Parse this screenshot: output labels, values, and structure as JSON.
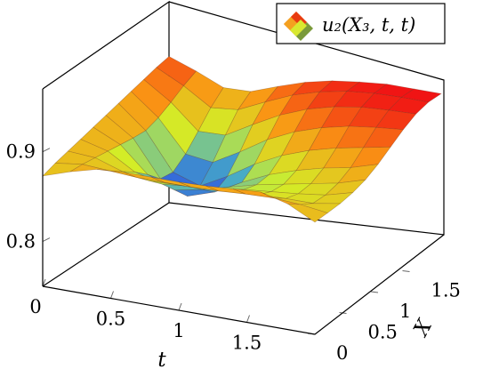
{
  "chart_data": {
    "type": "surface",
    "legend": {
      "label": "u₂(X₃, t, t)",
      "position": "top-right"
    },
    "axes": {
      "t": {
        "label": "t",
        "range": [
          0,
          2
        ],
        "ticks": [
          "0",
          "0.5",
          "1",
          "1.5"
        ],
        "tick_values": [
          0,
          0.5,
          1,
          1.5
        ]
      },
      "X": {
        "label": "X",
        "range": [
          0,
          2
        ],
        "ticks": [
          "0",
          "0.5",
          "1",
          "1.5"
        ],
        "tick_values": [
          0,
          0.5,
          1,
          1.5
        ]
      },
      "z": {
        "range": [
          0.75,
          0.97
        ],
        "ticks": [
          "0.8",
          "0.9"
        ],
        "tick_values": [
          0.8,
          0.9
        ]
      }
    },
    "grid": false,
    "box": true,
    "colormap": "blue-yellow-red (jet, upper half)",
    "color_range": [
      0.815,
      0.925
    ],
    "surface": {
      "t": [
        0,
        0.2,
        0.4,
        0.6,
        0.8,
        1.0,
        1.2,
        1.4,
        1.6,
        1.8,
        2.0
      ],
      "X": [
        0,
        0.2,
        0.4,
        0.6,
        0.8,
        1.0,
        1.2,
        1.4,
        1.6,
        1.8,
        2.0
      ],
      "z_rows_by_X": [
        [
          0.873,
          0.883,
          0.891,
          0.893,
          0.893,
          0.893,
          0.894,
          0.896,
          0.898,
          0.89,
          0.875
        ],
        [
          0.878,
          0.882,
          0.88,
          0.878,
          0.878,
          0.878,
          0.879,
          0.881,
          0.882,
          0.88,
          0.876
        ],
        [
          0.882,
          0.88,
          0.87,
          0.865,
          0.866,
          0.867,
          0.869,
          0.871,
          0.872,
          0.872,
          0.877
        ],
        [
          0.886,
          0.878,
          0.86,
          0.852,
          0.855,
          0.858,
          0.862,
          0.865,
          0.868,
          0.872,
          0.88
        ],
        [
          0.89,
          0.876,
          0.848,
          0.836,
          0.842,
          0.85,
          0.858,
          0.864,
          0.87,
          0.876,
          0.885
        ],
        [
          0.894,
          0.874,
          0.834,
          0.82,
          0.83,
          0.846,
          0.86,
          0.87,
          0.878,
          0.884,
          0.893
        ],
        [
          0.898,
          0.873,
          0.832,
          0.822,
          0.838,
          0.857,
          0.872,
          0.883,
          0.891,
          0.897,
          0.903
        ],
        [
          0.902,
          0.878,
          0.843,
          0.839,
          0.856,
          0.875,
          0.889,
          0.899,
          0.906,
          0.91,
          0.913
        ],
        [
          0.906,
          0.886,
          0.859,
          0.86,
          0.877,
          0.893,
          0.905,
          0.913,
          0.918,
          0.92,
          0.921
        ],
        [
          0.91,
          0.895,
          0.876,
          0.879,
          0.893,
          0.906,
          0.915,
          0.921,
          0.924,
          0.925,
          0.925
        ],
        [
          0.913,
          0.902,
          0.889,
          0.89,
          0.901,
          0.911,
          0.918,
          0.922,
          0.925,
          0.925,
          0.925
        ]
      ]
    }
  }
}
